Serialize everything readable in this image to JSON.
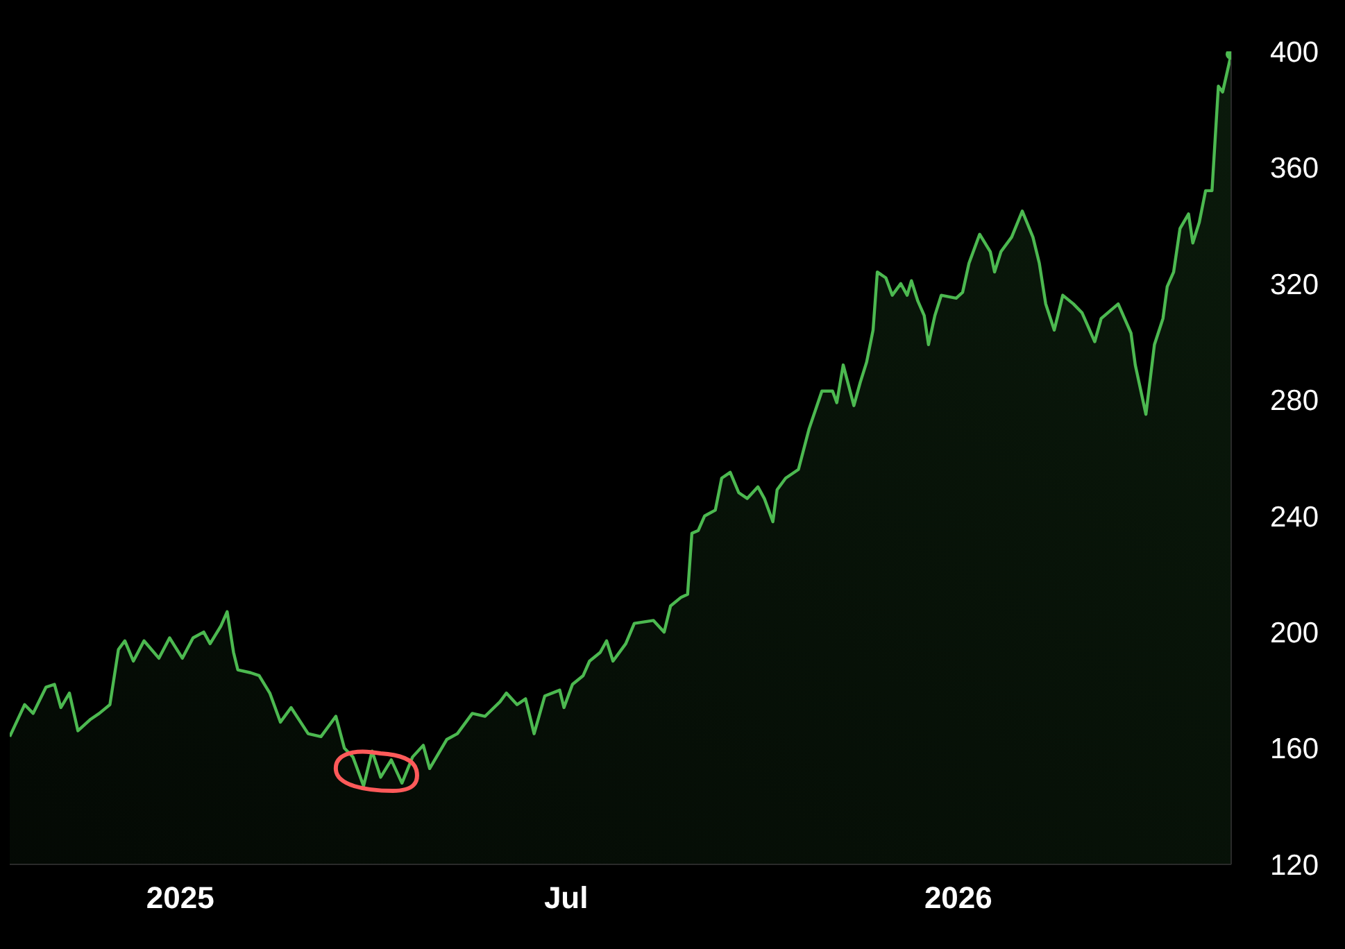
{
  "chart_data": {
    "type": "area",
    "x": [
      "2024-10-13",
      "2024-10-20",
      "2024-10-24",
      "2024-10-30",
      "2024-11-03",
      "2024-11-06",
      "2024-11-10",
      "2024-11-14",
      "2024-11-20",
      "2024-11-24",
      "2024-11-29",
      "2024-12-03",
      "2024-12-06",
      "2024-12-10",
      "2024-12-15",
      "2024-12-22",
      "2024-12-27",
      "2025-01-02",
      "2025-01-07",
      "2025-01-12",
      "2025-01-15",
      "2025-01-20",
      "2025-01-23",
      "2025-01-26",
      "2025-01-28",
      "2025-02-03",
      "2025-02-07",
      "2025-02-12",
      "2025-02-17",
      "2025-02-22",
      "2025-03-02",
      "2025-03-08",
      "2025-03-15",
      "2025-03-19",
      "2025-03-23",
      "2025-03-28",
      "2025-04-01",
      "2025-04-05",
      "2025-04-10",
      "2025-04-15",
      "2025-04-20",
      "2025-04-25",
      "2025-04-28",
      "2025-05-06",
      "2025-05-11",
      "2025-05-18",
      "2025-05-24",
      "2025-05-31",
      "2025-06-03",
      "2025-06-08",
      "2025-06-12",
      "2025-06-16",
      "2025-06-21",
      "2025-06-28",
      "2025-06-30",
      "2025-07-04",
      "2025-07-09",
      "2025-07-12",
      "2025-07-17",
      "2025-07-20",
      "2025-07-23",
      "2025-07-29",
      "2025-08-02",
      "2025-08-11",
      "2025-08-16",
      "2025-08-19",
      "2025-08-24",
      "2025-08-27",
      "2025-08-29",
      "2025-09-01",
      "2025-09-04",
      "2025-09-09",
      "2025-09-12",
      "2025-09-16",
      "2025-09-20",
      "2025-09-24",
      "2025-09-29",
      "2025-10-02",
      "2025-10-06",
      "2025-10-08",
      "2025-10-12",
      "2025-10-18",
      "2025-10-23",
      "2025-10-29",
      "2025-11-03",
      "2025-11-05",
      "2025-11-08",
      "2025-11-13",
      "2025-11-16",
      "2025-11-19",
      "2025-11-22",
      "2025-11-24",
      "2025-11-28",
      "2025-12-01",
      "2025-12-05",
      "2025-12-08",
      "2025-12-10",
      "2025-12-13",
      "2025-12-16",
      "2025-12-18",
      "2025-12-21",
      "2025-12-24",
      "2025-12-31",
      "2026-01-03",
      "2026-01-06",
      "2026-01-11",
      "2026-01-16",
      "2026-01-18",
      "2026-01-21",
      "2026-01-26",
      "2026-01-31",
      "2026-02-05",
      "2026-02-08",
      "2026-02-11",
      "2026-02-15",
      "2026-02-19",
      "2026-02-24",
      "2026-02-28",
      "2026-03-06",
      "2026-03-09",
      "2026-03-17",
      "2026-03-20",
      "2026-03-23",
      "2026-03-25",
      "2026-03-30",
      "2026-04-03",
      "2026-04-07",
      "2026-04-09",
      "2026-04-12",
      "2026-04-15",
      "2026-04-19",
      "2026-04-21",
      "2026-04-24",
      "2026-04-27",
      "2026-04-30",
      "2026-05-03",
      "2026-05-05",
      "2026-05-09"
    ],
    "series": [
      {
        "color": "#4cb950",
        "values": [
          164,
          175,
          172,
          181,
          182,
          174,
          179,
          166,
          170,
          172,
          175,
          194,
          197,
          190,
          197,
          191,
          198,
          191,
          198,
          200,
          196,
          202,
          207,
          193,
          187,
          186,
          185,
          179,
          169,
          174,
          165,
          164,
          171,
          160,
          157,
          147,
          159,
          150,
          156,
          148,
          157,
          161,
          153,
          163,
          165,
          172,
          171,
          176,
          179,
          175,
          177,
          165,
          178,
          180,
          174,
          182,
          185,
          190,
          193,
          197,
          190,
          196,
          203,
          204,
          200,
          209,
          212,
          213,
          234,
          235,
          240,
          242,
          253,
          255,
          248,
          246,
          250,
          246,
          238,
          249,
          253,
          256,
          270,
          283,
          283,
          279,
          292,
          278,
          286,
          293,
          304,
          324,
          322,
          316,
          320,
          316,
          321,
          314,
          309,
          299,
          309,
          316,
          315,
          317,
          327,
          337,
          331,
          324,
          331,
          336,
          345,
          336,
          327,
          313,
          304,
          316,
          313,
          310,
          300,
          308,
          313,
          308,
          303,
          292,
          275,
          299,
          308,
          319,
          324,
          339,
          344,
          334,
          341,
          352,
          352,
          388,
          386,
          399
        ]
      }
    ],
    "xticks": [
      {
        "value": "2025-01-01",
        "label": "2025"
      },
      {
        "value": "2025-07-01",
        "label": "Jul"
      },
      {
        "value": "2026-01-01",
        "label": "2026"
      }
    ],
    "xlim": [
      "2024-10-13",
      "2026-05-09"
    ],
    "ylim": [
      120,
      400
    ],
    "yticks": [
      120,
      160,
      200,
      240,
      280,
      320,
      360,
      400
    ],
    "grid": false,
    "legend": false
  }
}
